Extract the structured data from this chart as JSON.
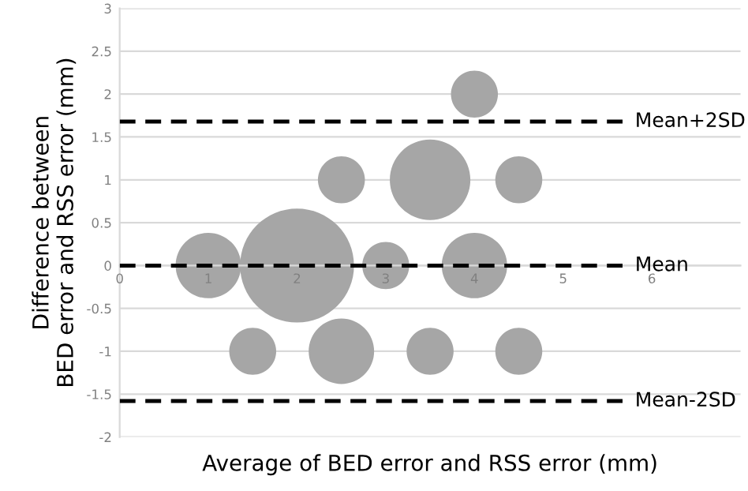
{
  "chart_data": {
    "type": "bubble",
    "xlabel": "Average of BED error and RSS error (mm)",
    "ylabel": "Difference between\nBED error and RSS error (mm)",
    "series": [
      {
        "color": "#a6a6a6",
        "x": [
          1,
          2,
          3,
          4,
          1.5,
          2.5,
          3.5,
          4.5,
          2.5,
          3.5,
          4.5,
          4
        ],
        "values": [
          0,
          0,
          0,
          0,
          -1,
          -1,
          -1,
          -1,
          1,
          1,
          1,
          2
        ],
        "sizes": [
          0.33,
          1,
          0.17,
          0.33,
          0.17,
          0.33,
          0.17,
          0.17,
          0.17,
          0.5,
          0.17,
          0.17
        ]
      }
    ],
    "xlim": [
      0,
      7
    ],
    "xticks": [
      0,
      1,
      2,
      3,
      4,
      5,
      6
    ],
    "ylim": [
      -2,
      3
    ],
    "yticks": [
      -2,
      -1.5,
      -1,
      -0.5,
      0,
      0.5,
      1,
      1.5,
      2,
      2.5,
      3
    ],
    "grid": "y",
    "ref_lines": [
      {
        "axis": "y",
        "value": 1.68,
        "label": "Mean+2SD",
        "color": "#000000",
        "line_style": "dashed"
      },
      {
        "axis": "y",
        "value": 0,
        "label": "Mean",
        "color": "#000000",
        "line_style": "dashed"
      },
      {
        "axis": "y",
        "value": -1.58,
        "label": "Mean-2SD",
        "color": "#000000",
        "line_style": "dashed"
      }
    ]
  }
}
